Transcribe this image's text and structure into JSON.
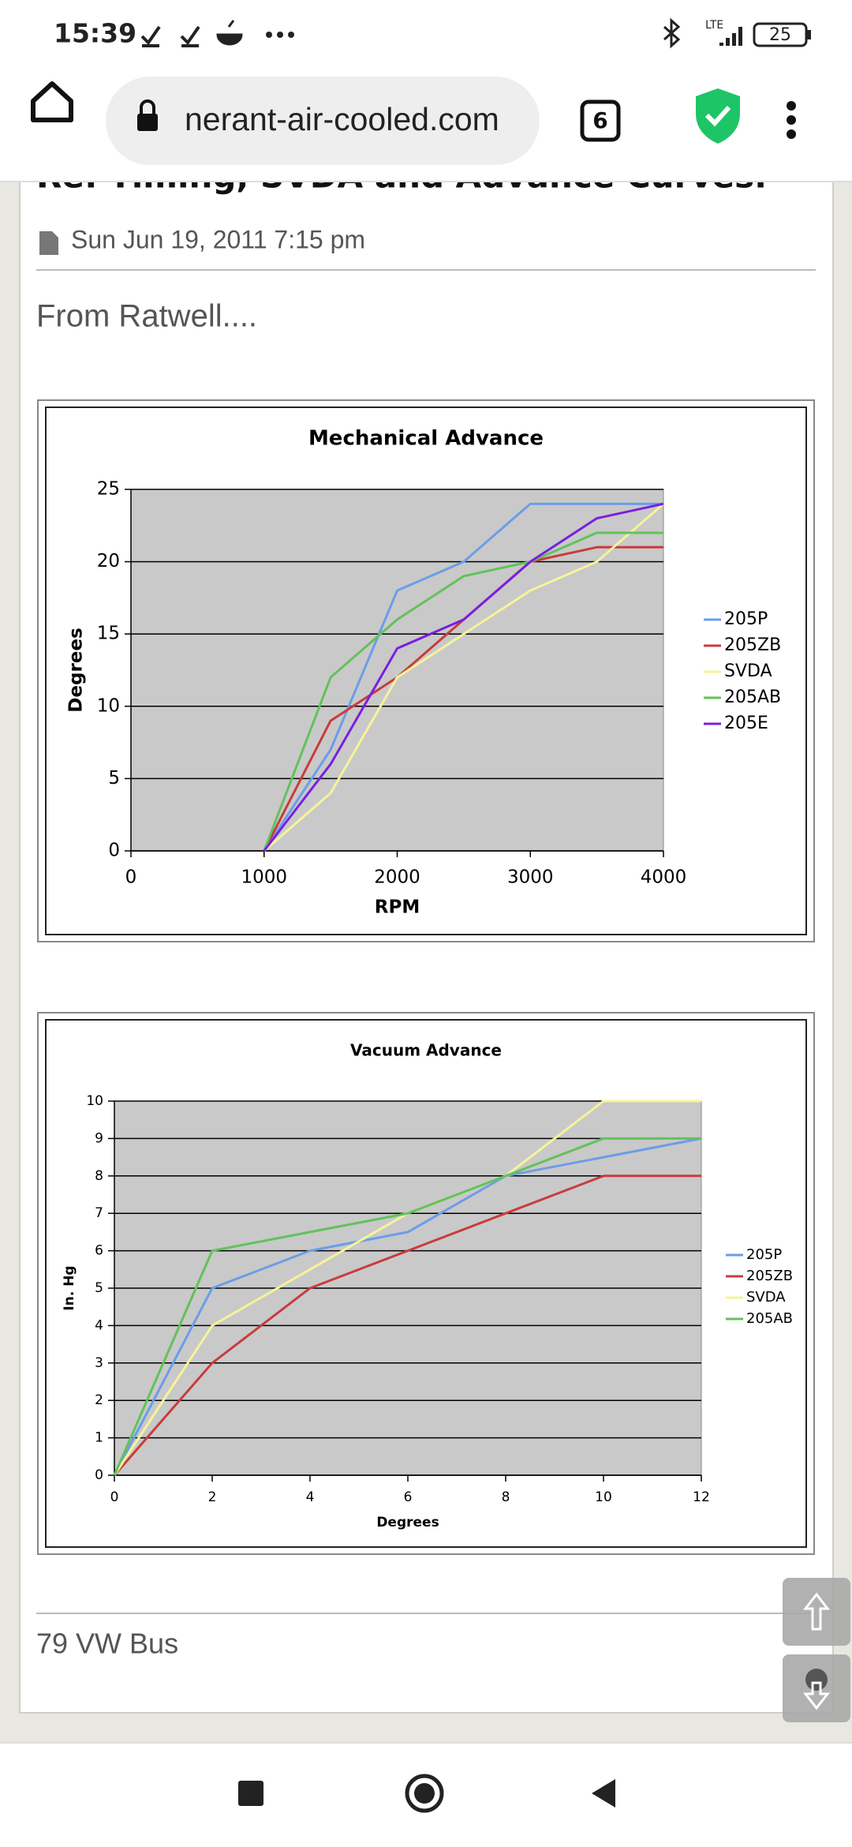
{
  "status_bar": {
    "time": "15:39",
    "network": "LTE",
    "battery": "25"
  },
  "browser": {
    "url": "nerant-air-cooled.com",
    "tab_count": "6"
  },
  "post": {
    "title": "Re: Timing, SVDA and Advance Curves.",
    "date": "Sun Jun 19, 2011 7:15 pm",
    "intro": "From Ratwell....",
    "signature": "79 VW Bus"
  },
  "chart_data": [
    {
      "type": "line",
      "title": "Mechanical Advance",
      "x_label": "RPM",
      "y_label": "Degrees",
      "x": [
        1000,
        1500,
        2000,
        2500,
        3000,
        3500,
        4000
      ],
      "xlim": [
        0,
        4000
      ],
      "xticks": [
        0,
        1000,
        2000,
        3000,
        4000
      ],
      "ylim": [
        0,
        25
      ],
      "yticks": [
        0,
        5,
        10,
        15,
        20,
        25
      ],
      "grid": true,
      "legend": "right",
      "series": [
        {
          "name": "205P",
          "color": "#6a9ee8",
          "values": [
            0,
            7,
            18,
            20,
            24,
            24,
            24
          ]
        },
        {
          "name": "205ZB",
          "color": "#c83c3c",
          "values": [
            0,
            9,
            12,
            16,
            20,
            21,
            21
          ]
        },
        {
          "name": "SVDA",
          "color": "#f6f39a",
          "values": [
            0,
            4,
            12,
            15,
            18,
            20,
            24
          ]
        },
        {
          "name": "205AB",
          "color": "#62c25a",
          "values": [
            0,
            12,
            16,
            19,
            20,
            22,
            22
          ]
        },
        {
          "name": "205E",
          "color": "#7a1fe0",
          "values": [
            0,
            6,
            14,
            16,
            20,
            23,
            24
          ]
        }
      ]
    },
    {
      "type": "line",
      "title": "Vacuum Advance",
      "x_label": "Degrees",
      "y_label": "In. Hg",
      "x": [
        0,
        2,
        4,
        6,
        8,
        10,
        12
      ],
      "xlim": [
        0,
        12
      ],
      "xticks": [
        0,
        2,
        4,
        6,
        8,
        10,
        12
      ],
      "ylim": [
        0,
        10
      ],
      "yticks": [
        0,
        1,
        2,
        3,
        4,
        5,
        6,
        7,
        8,
        9,
        10
      ],
      "grid": true,
      "legend": "right",
      "series": [
        {
          "name": "205P",
          "color": "#6a9ee8",
          "values": [
            0,
            5,
            6,
            6.5,
            8,
            8.5,
            9
          ]
        },
        {
          "name": "205ZB",
          "color": "#c83c3c",
          "values": [
            0,
            3,
            5,
            6,
            7,
            8,
            8
          ]
        },
        {
          "name": "SVDA",
          "color": "#f6f39a",
          "values": [
            0,
            4,
            5.5,
            7,
            8,
            10,
            10
          ]
        },
        {
          "name": "205AB",
          "color": "#62c25a",
          "values": [
            0,
            6,
            6.5,
            7,
            8,
            9,
            9
          ]
        }
      ]
    }
  ]
}
